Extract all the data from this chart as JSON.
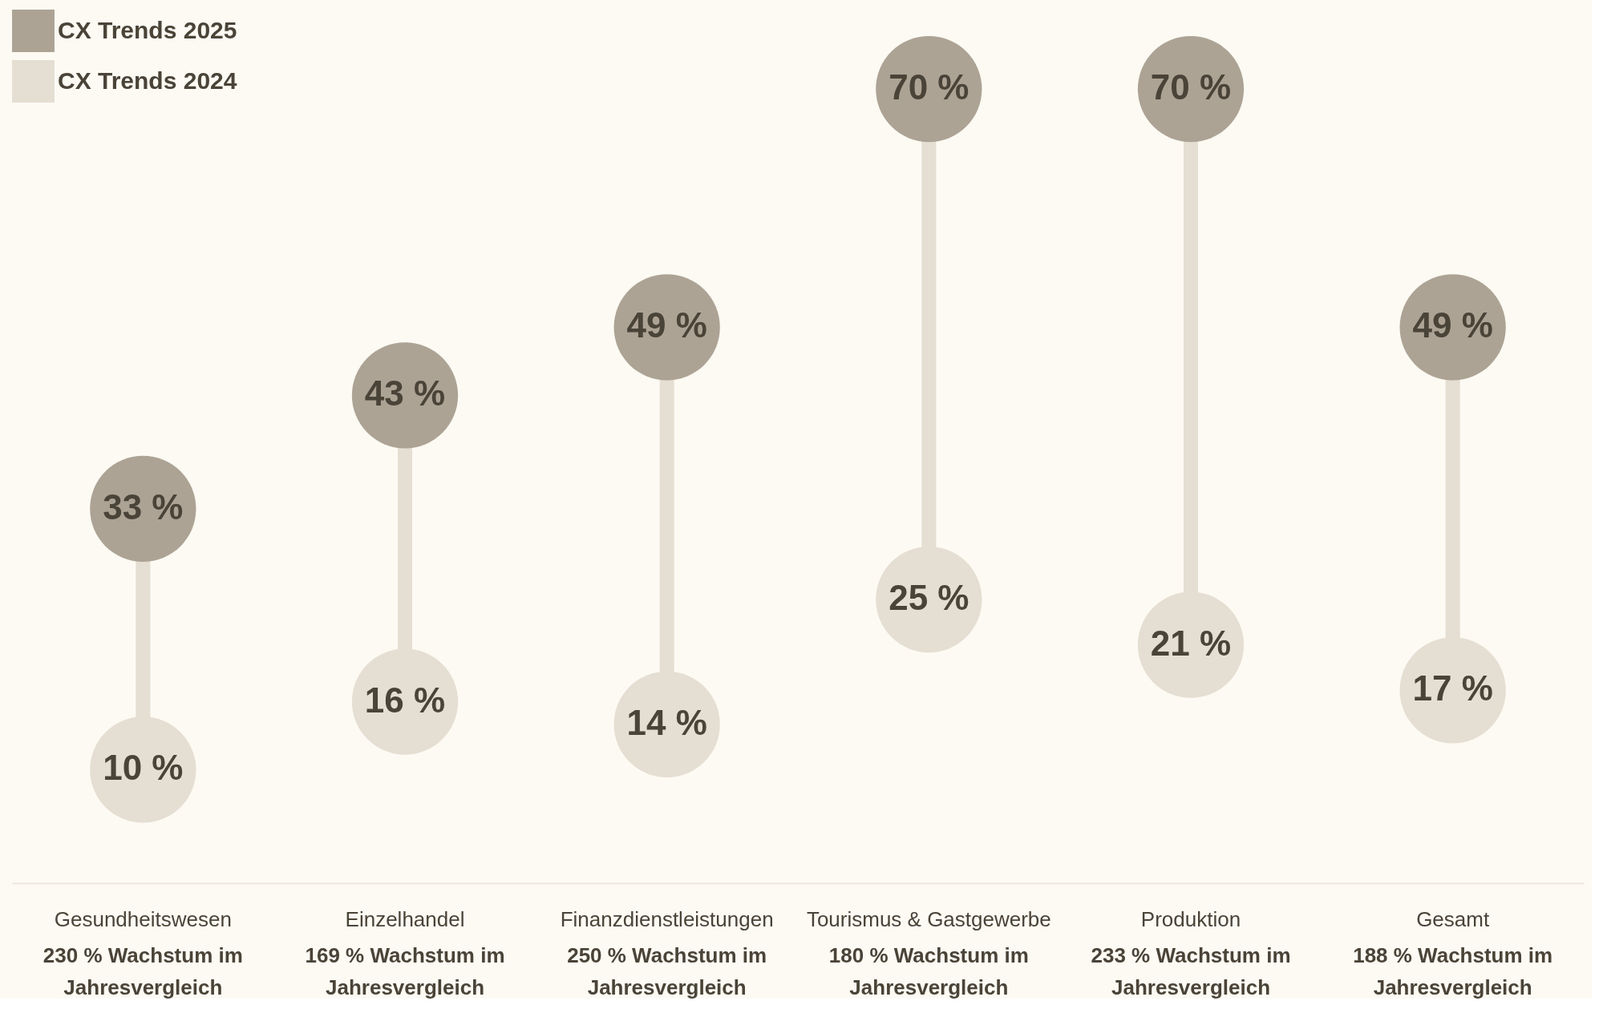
{
  "chart_data": {
    "type": "scatter",
    "categories": [
      "Gesundheitswesen",
      "Einzelhandel",
      "Finanzdienstleistungen",
      "Tourismus & Gastgewerbe",
      "Produktion",
      "Gesamt"
    ],
    "series": [
      {
        "name": "CX Trends 2025",
        "color": "#aca395",
        "values": [
          33,
          43,
          49,
          70,
          70,
          49
        ],
        "value_labels": [
          "33 %",
          "43 %",
          "49 %",
          "70 %",
          "70 %",
          "49 %"
        ]
      },
      {
        "name": "CX Trends 2024",
        "color": "#e5ded2",
        "values": [
          10,
          16,
          14,
          25,
          21,
          17
        ],
        "value_labels": [
          "10 %",
          "16 %",
          "14 %",
          "25 %",
          "21 %",
          "17 %"
        ]
      }
    ],
    "annotations": [
      "230 % Wachstum im Jahresvergleich",
      "169 % Wachstum im Jahresvergleich",
      "250 % Wachstum im Jahresvergleich",
      "180 % Wachstum im Jahresvergleich",
      "233 % Wachstum im Jahresvergleich",
      "188 % Wachstum im Jahresvergleich"
    ],
    "marker": "circle",
    "legend": "top left"
  }
}
